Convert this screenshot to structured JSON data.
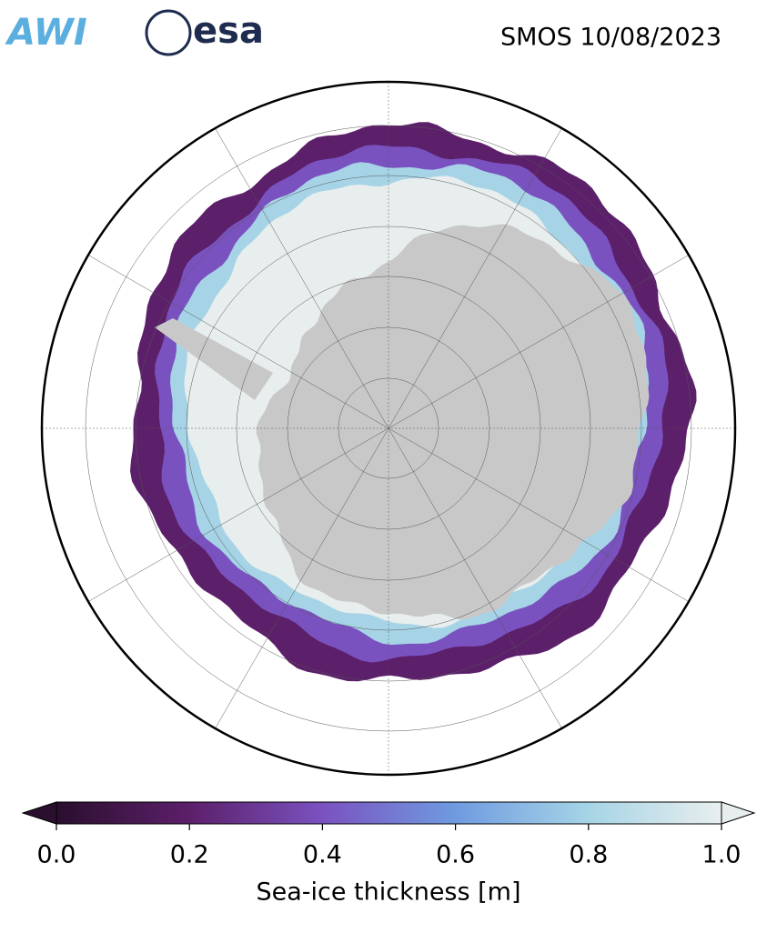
{
  "header": {
    "logos": [
      "AWI",
      "esa"
    ],
    "title": "SMOS 10/08/2023"
  },
  "colorbar": {
    "label": "Sea-ice thickness [m]",
    "lim": [
      0,
      1
    ],
    "ticks": [
      {
        "value": 0,
        "label": "0.0"
      },
      0.2,
      0.4,
      0.6,
      0.8,
      {
        "value": 1,
        "label": "1.0"
      }
    ],
    "colors": [
      "#2a0f2e",
      "#5c1f6a",
      "#7a52c0",
      "#6f9be0",
      "#a6d4e6",
      "#e8eeee"
    ],
    "extend": "both"
  }
}
